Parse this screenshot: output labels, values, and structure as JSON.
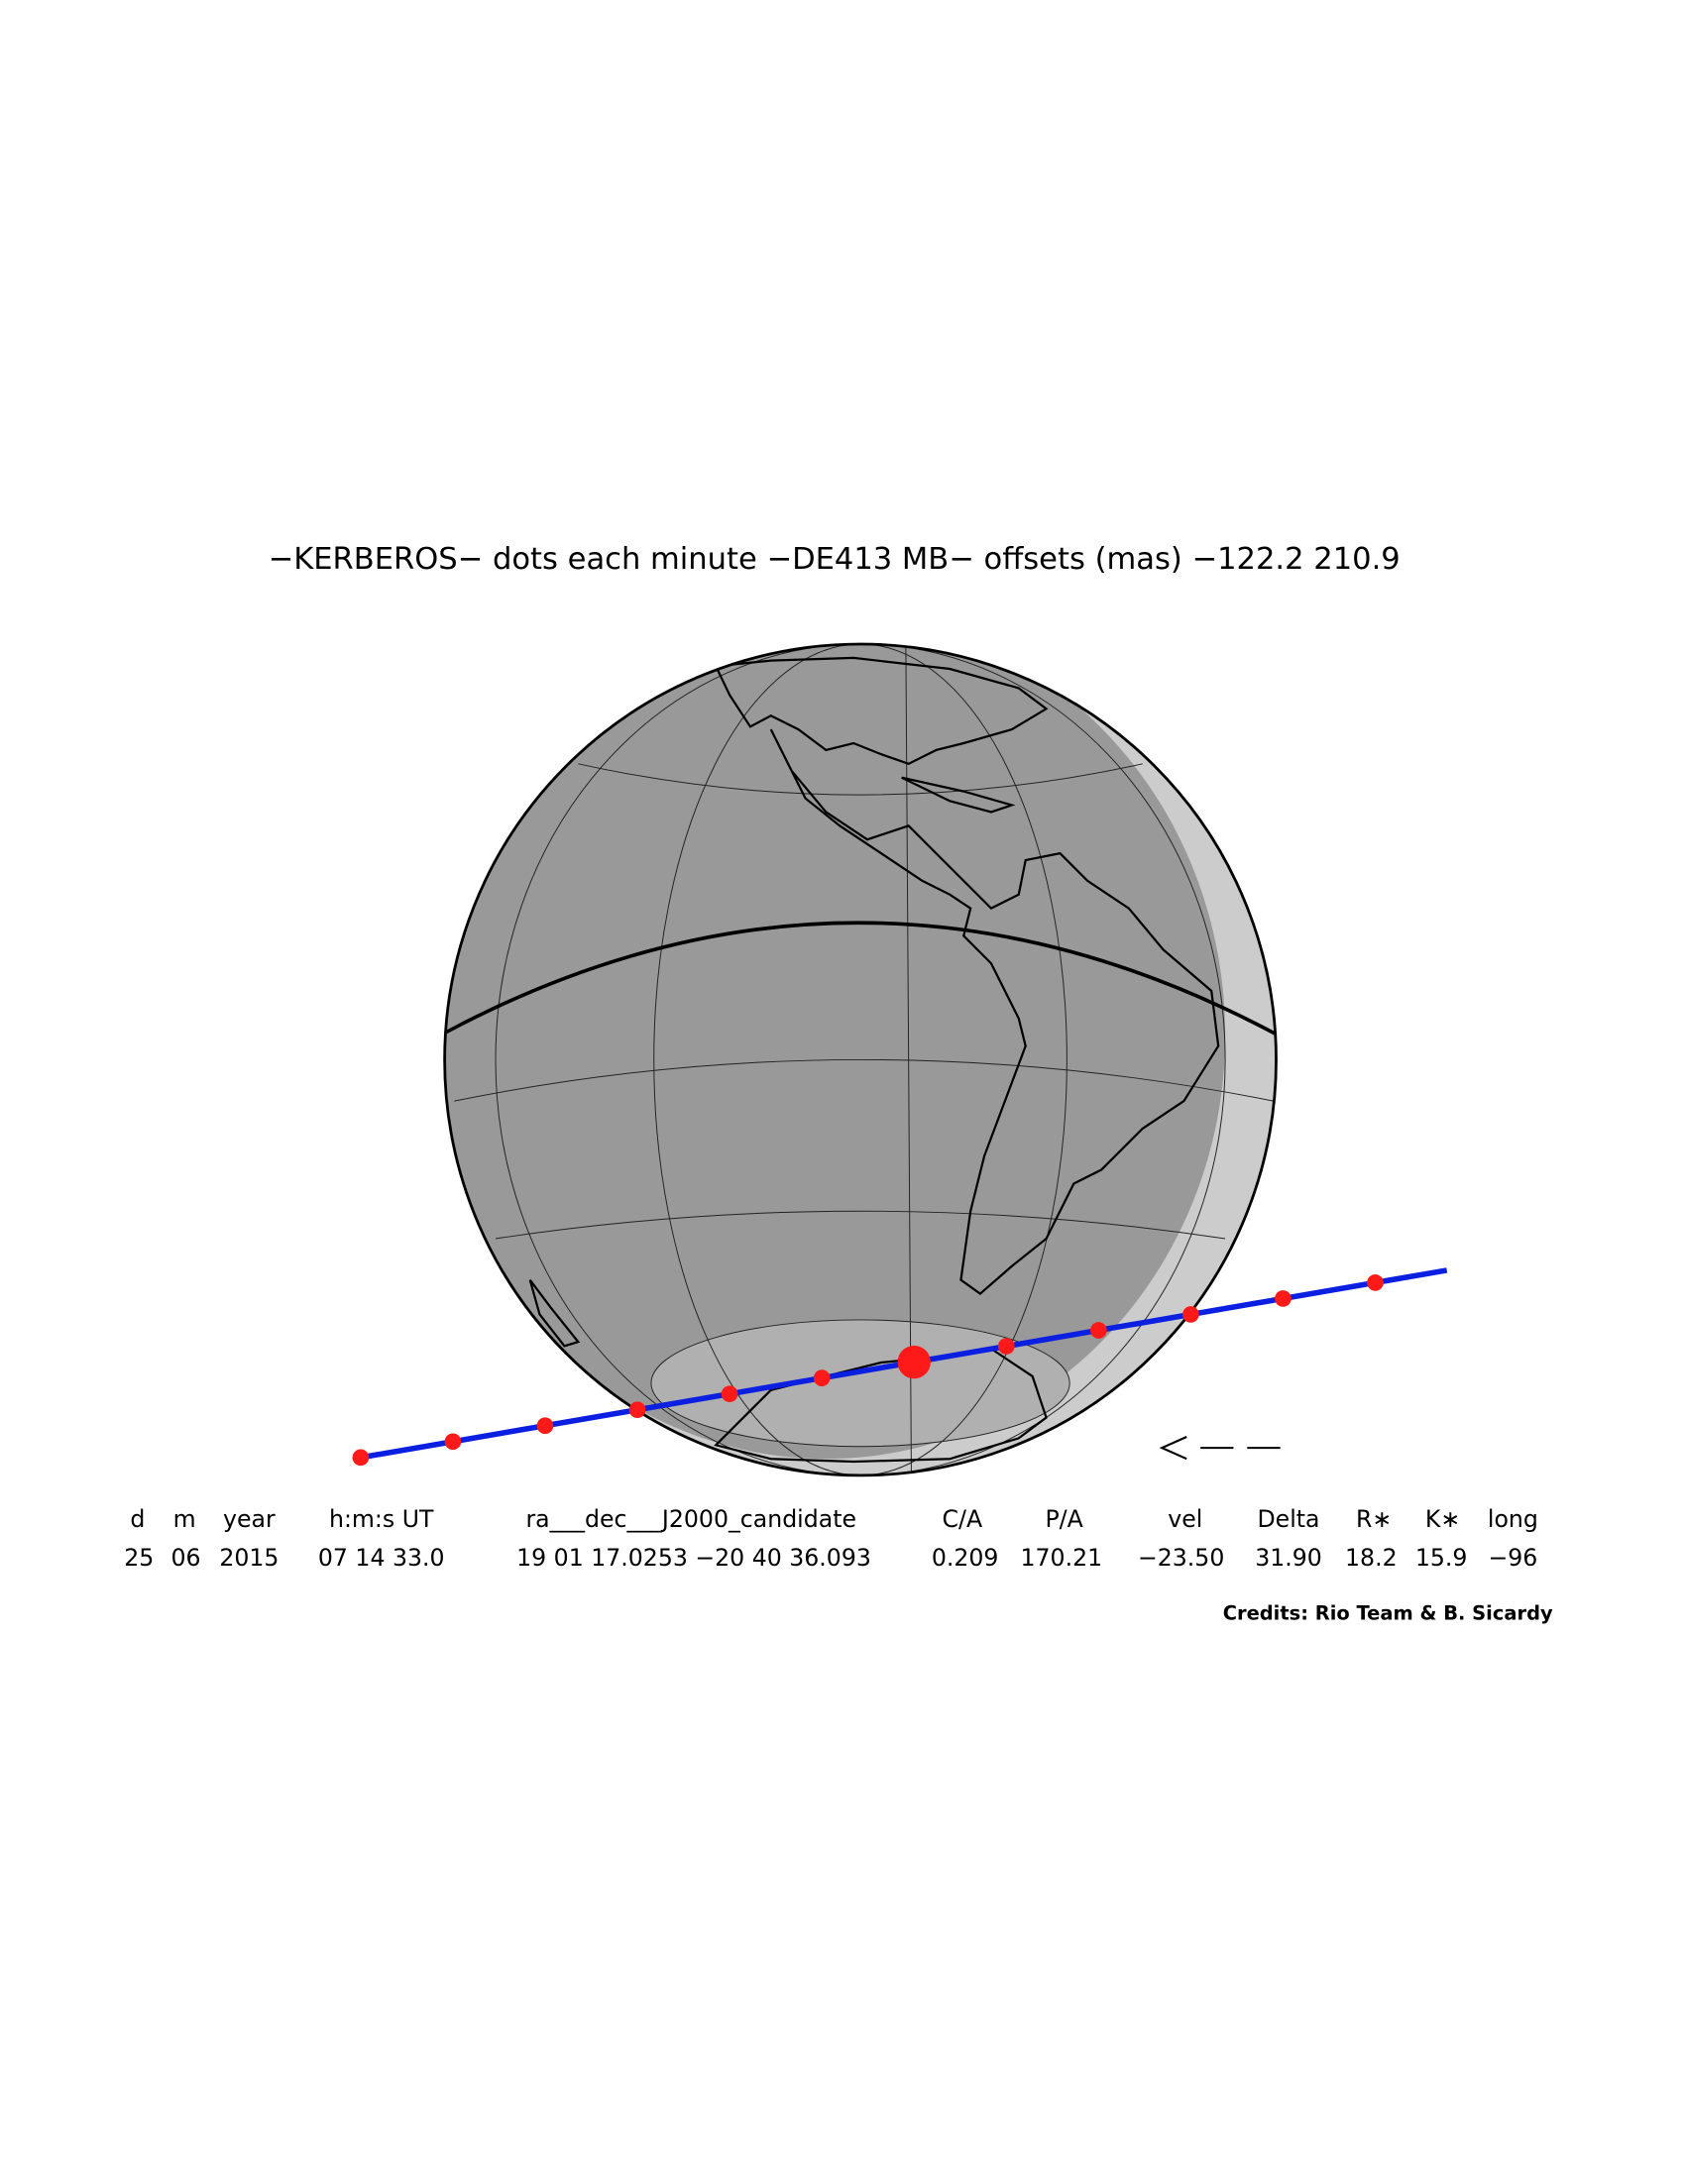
{
  "title": "−KERBEROS− dots each minute −DE413 MB− offsets (mas) −122.2  210.9",
  "table": {
    "headers": [
      "d",
      "m",
      "year",
      "h:m:s UT",
      "ra___dec___J2000_candidate",
      "C/A",
      "P/A",
      "vel",
      "Delta",
      "R∗",
      "K∗",
      "long"
    ],
    "values": [
      "25",
      "06",
      "2015",
      "07 14 33.0",
      "19 01 17.0253 −20 40 36.093",
      "0.209",
      "170.21",
      "−23.50",
      "31.90",
      "18.2",
      "15.9",
      "−96"
    ]
  },
  "credits": "Credits: Rio Team & B. Sicardy"
}
